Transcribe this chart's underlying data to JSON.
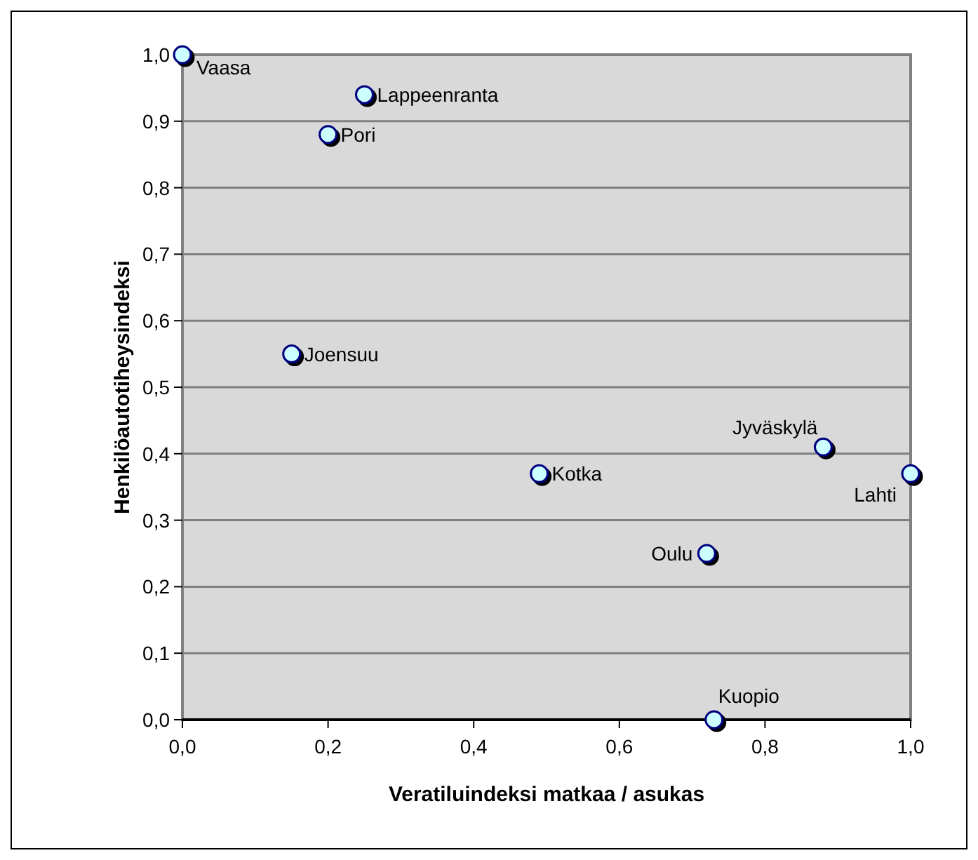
{
  "chart_data": {
    "type": "scatter",
    "xlabel": "Veratiluindeksi matkaa / asukas",
    "ylabel": "Henkilöautotiheysindeksi",
    "x": [
      0,
      0.25,
      0.2,
      0.15,
      0.49,
      0.88,
      1.0,
      0.72,
      0.73
    ],
    "series": [
      {
        "color": "#ccffff",
        "values": [
          1.0,
          0.94,
          0.88,
          0.55,
          0.37,
          0.41,
          0.37,
          0.25,
          0.0
        ]
      }
    ],
    "marker": "circle",
    "grid": "y",
    "xlim": [
      0,
      1
    ],
    "xticks": [
      {
        "value": 0,
        "label": "0,0"
      },
      {
        "value": 0.2,
        "label": "0,2"
      },
      {
        "value": 0.4,
        "label": "0,4"
      },
      {
        "value": 0.6,
        "label": "0,6"
      },
      {
        "value": 0.8,
        "label": "0,8"
      },
      {
        "value": 1,
        "label": "1,0"
      }
    ],
    "ylim": [
      0,
      1
    ],
    "yticks": [
      {
        "value": 0,
        "label": "0,0"
      },
      {
        "value": 0.1,
        "label": "0,1"
      },
      {
        "value": 0.2,
        "label": "0,2"
      },
      {
        "value": 0.3,
        "label": "0,3"
      },
      {
        "value": 0.4,
        "label": "0,4"
      },
      {
        "value": 0.5,
        "label": "0,5"
      },
      {
        "value": 0.6,
        "label": "0,6"
      },
      {
        "value": 0.7,
        "label": "0,7"
      },
      {
        "value": 0.8,
        "label": "0,8"
      },
      {
        "value": 0.9,
        "label": "0,9"
      },
      {
        "value": 1,
        "label": "1,0"
      }
    ],
    "annotations": [
      {
        "text": "Vaasa",
        "x": 0,
        "y": 1.0
      },
      {
        "text": "Lappeenranta",
        "x": 0.25,
        "y": 0.94
      },
      {
        "text": "Pori",
        "x": 0.2,
        "y": 0.88
      },
      {
        "text": "Joensuu",
        "x": 0.15,
        "y": 0.55
      },
      {
        "text": "Kotka",
        "x": 0.49,
        "y": 0.37
      },
      {
        "text": "Jyväskylä",
        "x": 0.88,
        "y": 0.41
      },
      {
        "text": "Lahti",
        "x": 1.0,
        "y": 0.37
      },
      {
        "text": "Oulu",
        "x": 0.72,
        "y": 0.25
      },
      {
        "text": "Kuopio",
        "x": 0.73,
        "y": 0.0
      }
    ]
  }
}
